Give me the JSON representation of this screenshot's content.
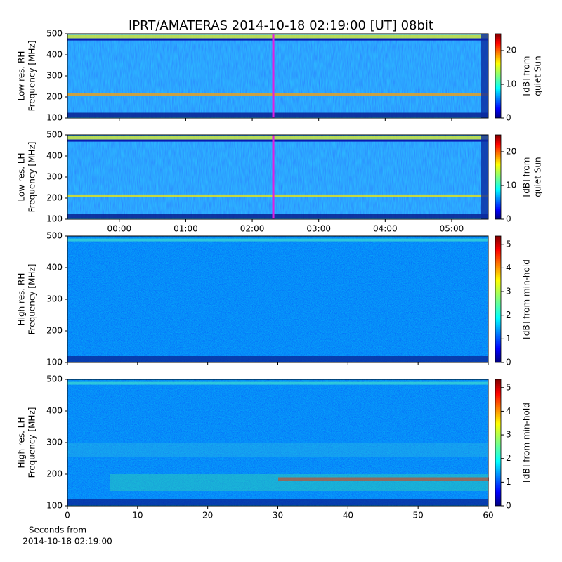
{
  "chart_data": [
    {
      "type": "heatmap",
      "title": "IPRT/AMATERAS 2014-10-18 02:19:00 [UT]   08bit",
      "ylabel": [
        "Low res. RH",
        "Frequency [MHz]"
      ],
      "ylim": [
        100,
        500
      ],
      "yticks": [
        100,
        200,
        300,
        400,
        500
      ],
      "xlim": [
        -0.78,
        5.55
      ],
      "marker_x": 2.3167,
      "marker_color": "#e020e0",
      "colormap": "jet",
      "clim": [
        0,
        25
      ],
      "cticks": [
        0,
        10,
        20
      ],
      "clabel": [
        "[dB] from",
        "quiet Sun"
      ]
    },
    {
      "type": "heatmap",
      "ylabel": [
        "Low res. LH",
        "Frequency [MHz]"
      ],
      "ylim": [
        100,
        500
      ],
      "yticks": [
        100,
        200,
        300,
        400,
        500
      ],
      "xlim": [
        -0.78,
        5.55
      ],
      "xticks": [
        {
          "value": 0,
          "label": "00:00"
        },
        {
          "value": 1,
          "label": "01:00"
        },
        {
          "value": 2,
          "label": "02:00"
        },
        {
          "value": 3,
          "label": "03:00"
        },
        {
          "value": 4,
          "label": "04:00"
        },
        {
          "value": 5,
          "label": "05:00"
        }
      ],
      "marker_x": 2.3167,
      "marker_color": "#e020e0",
      "colormap": "jet",
      "clim": [
        0,
        25
      ],
      "cticks": [
        0,
        10,
        20
      ],
      "clabel": [
        "[dB] from",
        "quiet Sun"
      ]
    },
    {
      "type": "heatmap",
      "ylabel": [
        "High res. RH",
        "Frequency [MHz]"
      ],
      "ylim": [
        100,
        500
      ],
      "yticks": [
        100,
        200,
        300,
        400,
        500
      ],
      "xlim": [
        0,
        60
      ],
      "colormap": "jet",
      "clim": [
        0,
        5.35
      ],
      "cticks": [
        0,
        1,
        2,
        3,
        4,
        5
      ],
      "clabel": [
        "[dB] from min-hold"
      ]
    },
    {
      "type": "heatmap",
      "ylabel": [
        "High res. LH",
        "Frequency [MHz]"
      ],
      "ylim": [
        100,
        500
      ],
      "yticks": [
        100,
        200,
        300,
        400,
        500
      ],
      "xlim": [
        0,
        60
      ],
      "xticks": [
        0,
        10,
        20,
        30,
        40,
        50,
        60
      ],
      "xlabel": [
        "Seconds from",
        "2014-10-18 02:19:00"
      ],
      "colormap": "jet",
      "clim": [
        0,
        5.35
      ],
      "cticks": [
        0,
        1,
        2,
        3,
        4,
        5
      ],
      "clabel": [
        "[dB] from min-hold"
      ]
    }
  ]
}
